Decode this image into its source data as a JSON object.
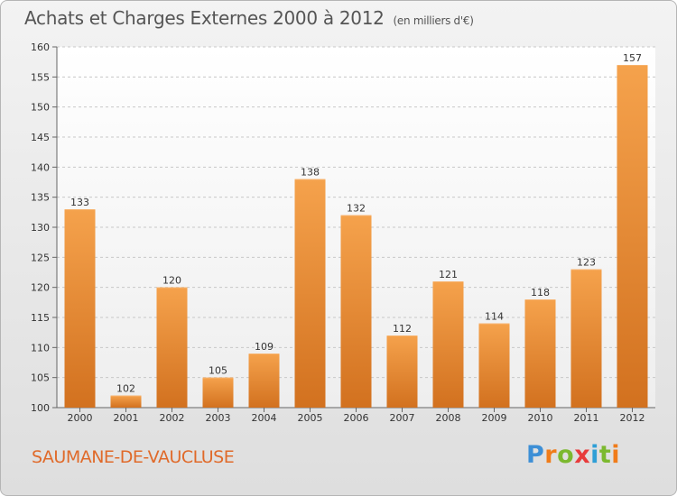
{
  "chart_data": {
    "type": "bar",
    "title": "Achats et Charges Externes 2000 à 2012",
    "subtitle": "(en milliers d'€)",
    "categories": [
      "2000",
      "2001",
      "2002",
      "2003",
      "2004",
      "2005",
      "2006",
      "2007",
      "2008",
      "2009",
      "2010",
      "2011",
      "2012"
    ],
    "values": [
      133,
      102,
      120,
      105,
      109,
      138,
      132,
      112,
      121,
      114,
      118,
      123,
      157
    ],
    "ylim": [
      100,
      160
    ],
    "yticks": [
      100,
      105,
      110,
      115,
      120,
      125,
      130,
      135,
      140,
      145,
      150,
      155,
      160
    ],
    "grid": true,
    "bar_color": "#f09a44",
    "xlabel": "",
    "ylabel": ""
  },
  "commune": "SAUMANE-DE-VAUCLUSE",
  "logo": {
    "letters": [
      "P",
      "r",
      "o",
      "x",
      "i",
      "t",
      "i"
    ],
    "colors": [
      "#3d8fd6",
      "#f07c1a",
      "#7cb92f",
      "#e83c3c",
      "#2f9fd6",
      "#7cb92f",
      "#f07c1a"
    ]
  }
}
